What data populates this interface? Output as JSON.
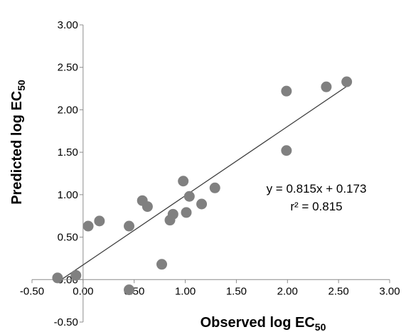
{
  "chart_data": {
    "type": "scatter",
    "title": "",
    "xlabel": {
      "main": "Observed log EC",
      "sub": "50"
    },
    "ylabel": {
      "main": "Predicted log EC",
      "sub": "50"
    },
    "xlim": [
      -0.5,
      3.0
    ],
    "ylim": [
      -0.5,
      3.0
    ],
    "x_ticks": [
      "-0.50",
      "0.00",
      "0.50",
      "1.00",
      "1.50",
      "2.00",
      "2.50",
      "3.00"
    ],
    "y_ticks": [
      "-0.50",
      "0.00",
      "0.50",
      "1.00",
      "1.50",
      "2.00",
      "2.50",
      "3.00"
    ],
    "grid": false,
    "legend": "none",
    "marker_color": "#808080",
    "series": [
      {
        "points": [
          [
            -0.25,
            0.02
          ],
          [
            -0.07,
            0.05
          ],
          [
            0.05,
            0.63
          ],
          [
            0.16,
            0.69
          ],
          [
            0.45,
            0.63
          ],
          [
            0.45,
            -0.12
          ],
          [
            0.58,
            0.93
          ],
          [
            0.63,
            0.86
          ],
          [
            0.77,
            0.18
          ],
          [
            0.85,
            0.7
          ],
          [
            0.88,
            0.77
          ],
          [
            0.98,
            1.16
          ],
          [
            1.01,
            0.79
          ],
          [
            1.04,
            0.98
          ],
          [
            1.16,
            0.89
          ],
          [
            1.29,
            1.08
          ],
          [
            1.99,
            2.22
          ],
          [
            1.99,
            1.52
          ],
          [
            2.38,
            2.27
          ],
          [
            2.58,
            2.33
          ]
        ]
      }
    ],
    "trendline": {
      "slope": 0.815,
      "intercept": 0.173,
      "x_range": [
        -0.25,
        2.58
      ],
      "equation": "y = 0.815x + 0.173",
      "r_squared": "r² = 0.815"
    }
  }
}
